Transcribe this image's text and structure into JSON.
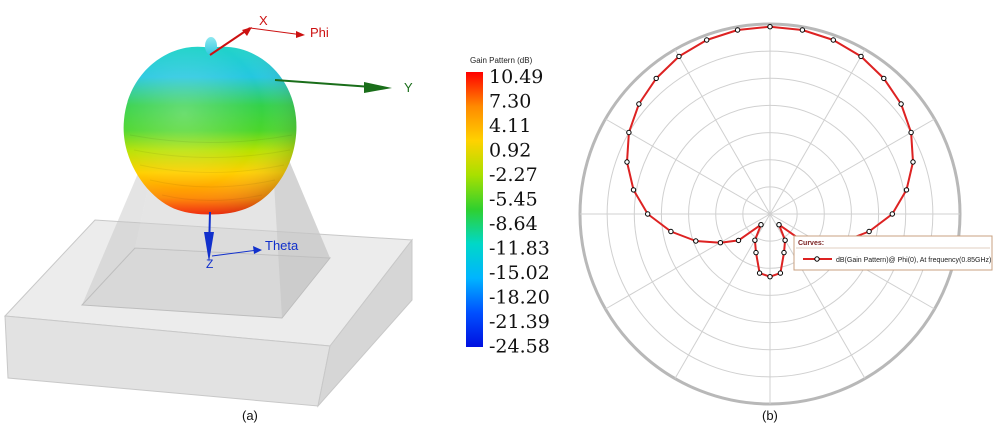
{
  "captions": {
    "left": "(a)",
    "right": "(b)"
  },
  "pattern3d": {
    "axis_labels": {
      "x": "X",
      "phi": "Phi",
      "y": "Y",
      "z": "Z",
      "theta": "Theta"
    },
    "colors": {
      "x": "#cc1111",
      "y": "#1a6e1a",
      "z": "#1130cc"
    }
  },
  "colorbar": {
    "title": "Gain Pattern (dB)",
    "ticks": [
      "10.49",
      "7.30",
      "4.11",
      "0.92",
      "-2.27",
      "-5.45",
      "-8.64",
      "-11.83",
      "-15.02",
      "-18.20",
      "-21.39",
      "-24.58"
    ],
    "gradient": [
      "#ff0000",
      "#ff8a00",
      "#ffd200",
      "#a8e000",
      "#2fd02f",
      "#00d8c8",
      "#00b4ff",
      "#0050ff",
      "#0010e0"
    ]
  },
  "chart_data": {
    "type": "line",
    "title": "",
    "polar": true,
    "series_color": "#dd2222",
    "r_max": 10.49,
    "r_min": -24.58,
    "series": [
      {
        "name": "dB(Gain Pattern)@ Phi(0), At frequency(0.85GHz)",
        "theta_deg": [
          0,
          10,
          20,
          30,
          40,
          50,
          60,
          70,
          80,
          90,
          100,
          110,
          120,
          130,
          140,
          150,
          160,
          170,
          180,
          190,
          200,
          210,
          220,
          230,
          240,
          250,
          260,
          270,
          280,
          290,
          300,
          310,
          320,
          330,
          340,
          350
        ],
        "gain_db": [
          10.0,
          9.9,
          9.6,
          9.0,
          8.1,
          7.0,
          5.5,
          3.5,
          1.0,
          -2.0,
          -6.0,
          -10.0,
          -14.0,
          -17.0,
          -22.0,
          -19.0,
          -17.0,
          -13.5,
          -13.0,
          -13.5,
          -17.0,
          -19.0,
          -22.0,
          -17.0,
          -14.0,
          -10.0,
          -6.0,
          -2.0,
          1.0,
          3.5,
          5.5,
          7.0,
          8.1,
          9.0,
          9.6,
          9.9
        ]
      }
    ]
  },
  "legend": {
    "title": "Curves:",
    "entry": "dB(Gain Pattern)@ Phi(0), At frequency(0.85GHz)"
  }
}
